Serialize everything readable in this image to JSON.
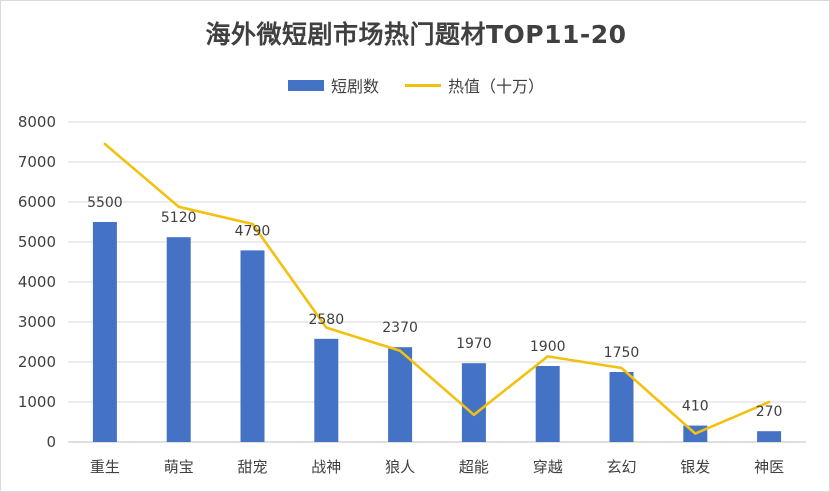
{
  "chart_data": {
    "type": "bar",
    "title": "海外微短剧市场热门题材TOP11-20",
    "categories": [
      "重生",
      "萌宝",
      "甜宠",
      "战神",
      "狼人",
      "超能",
      "穿越",
      "玄幻",
      "银发",
      "神医"
    ],
    "series": [
      {
        "name": "短剧数",
        "type": "bar",
        "color": "#4472C4",
        "values": [
          5500,
          5120,
          4790,
          2580,
          2370,
          1970,
          1900,
          1750,
          410,
          270
        ],
        "data_labels": [
          "5500",
          "5120",
          "4790",
          "2580",
          "2370",
          "1970",
          "1900",
          "1750",
          "410",
          "270"
        ]
      },
      {
        "name": "热值（十万）",
        "type": "line",
        "color": "#F2C110",
        "values": [
          7450,
          5880,
          5450,
          2860,
          2280,
          680,
          2140,
          1850,
          210,
          1000
        ]
      }
    ],
    "yticks": [
      "0",
      "1000",
      "2000",
      "3000",
      "4000",
      "5000",
      "6000",
      "7000",
      "8000"
    ],
    "ylim": [
      0,
      8000
    ],
    "xlabel": "",
    "ylabel": "",
    "grid": true,
    "legend_position": "top"
  }
}
